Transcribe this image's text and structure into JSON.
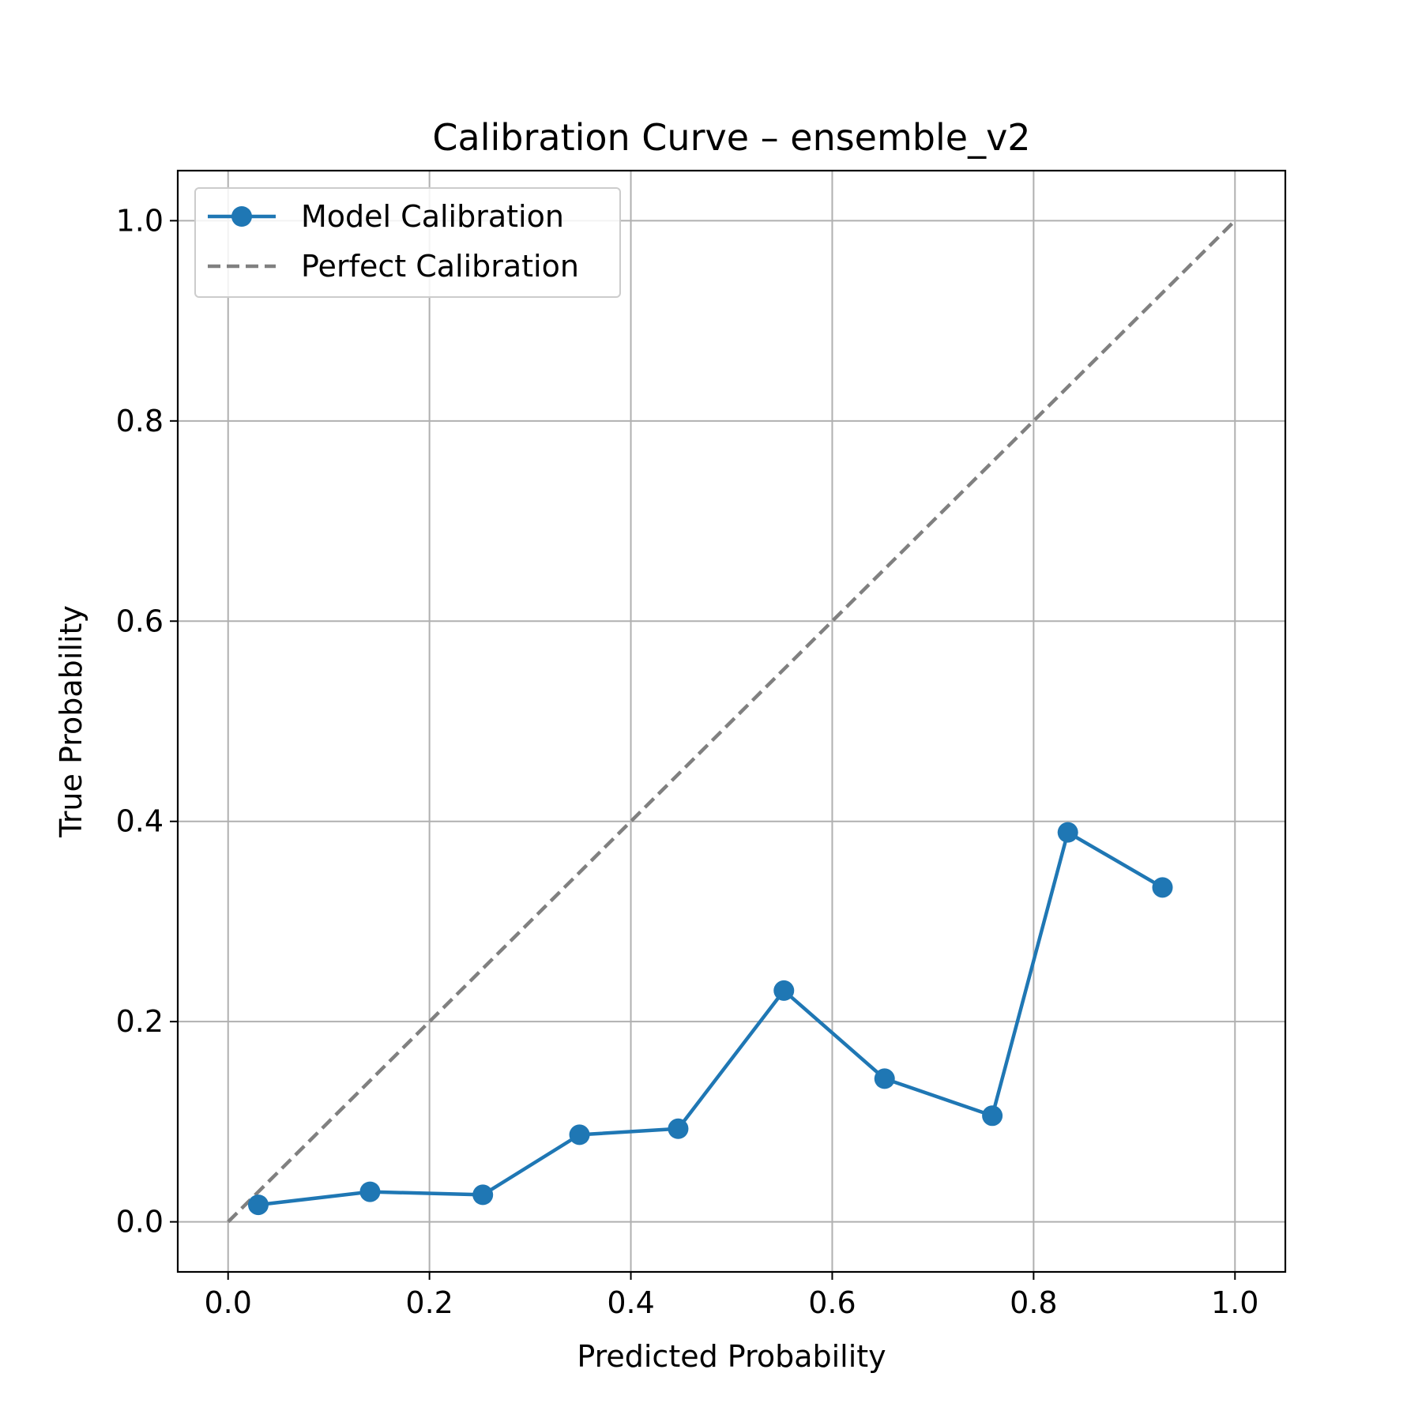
{
  "chart_data": {
    "type": "line",
    "title": "Calibration Curve – ensemble_v2",
    "xlabel": "Predicted Probability",
    "ylabel": "True Probability",
    "xlim": [
      -0.05,
      1.05
    ],
    "ylim": [
      -0.05,
      1.05
    ],
    "xticks": [
      "0.0",
      "0.2",
      "0.4",
      "0.6",
      "0.8",
      "1.0"
    ],
    "yticks": [
      "0.0",
      "0.2",
      "0.4",
      "0.6",
      "0.8",
      "1.0"
    ],
    "grid": true,
    "legend_position": "top-left",
    "series": [
      {
        "name": "Model Calibration",
        "color": "#1f77b4",
        "style": "solid-with-markers",
        "x": [
          0.03,
          0.141,
          0.253,
          0.349,
          0.447,
          0.552,
          0.652,
          0.759,
          0.834,
          0.928
        ],
        "y": [
          0.017,
          0.03,
          0.027,
          0.087,
          0.093,
          0.231,
          0.143,
          0.106,
          0.389,
          0.334
        ]
      },
      {
        "name": "Perfect Calibration",
        "color": "#808080",
        "style": "dashed",
        "x": [
          0,
          1
        ],
        "y": [
          0,
          1
        ]
      }
    ]
  }
}
